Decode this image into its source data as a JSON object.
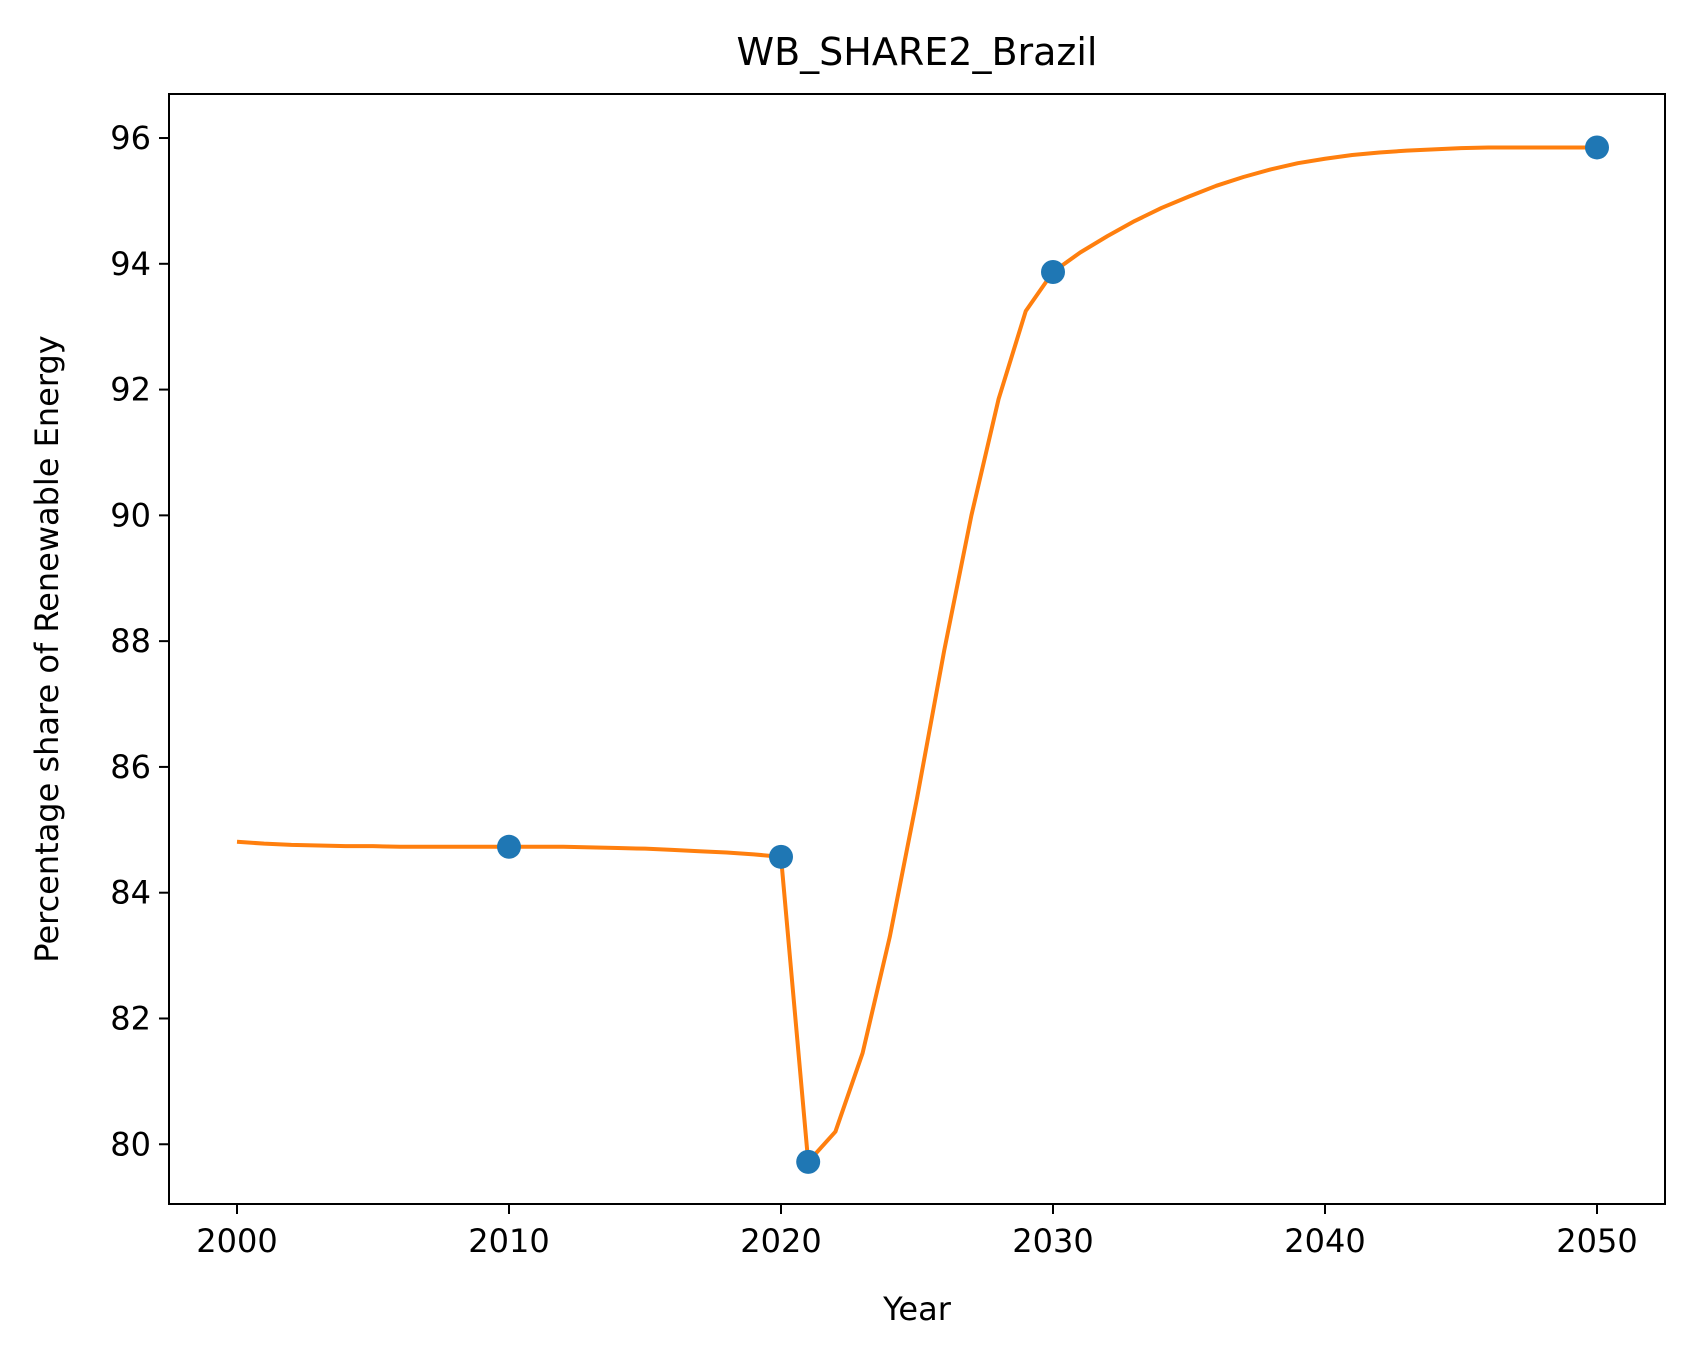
{
  "chart_data": {
    "type": "line",
    "title": "WB_SHARE2_Brazil",
    "xlabel": "Year",
    "ylabel": "Percentage share of Renewable Energy",
    "xlim": [
      1997.5,
      2052.5
    ],
    "ylim": [
      79.05,
      96.7
    ],
    "x_ticks": [
      2000,
      2010,
      2020,
      2030,
      2040,
      2050
    ],
    "y_ticks": [
      80,
      82,
      84,
      86,
      88,
      90,
      92,
      94,
      96
    ],
    "grid": false,
    "legend": "none",
    "series": [
      {
        "kind": "scatter",
        "color": "#1f77b4",
        "x": [
          2010,
          2020,
          2021,
          2030,
          2050
        ],
        "y": [
          84.73,
          84.57,
          79.72,
          93.87,
          95.85
        ]
      },
      {
        "kind": "line",
        "color": "#ff7f0e",
        "x": [
          2000,
          2001,
          2002,
          2003,
          2004,
          2005,
          2006,
          2007,
          2008,
          2009,
          2010,
          2011,
          2012,
          2013,
          2014,
          2015,
          2016,
          2017,
          2018,
          2019,
          2020,
          2021,
          2022,
          2023,
          2024,
          2025,
          2026,
          2027,
          2028,
          2029,
          2030,
          2031,
          2032,
          2033,
          2034,
          2035,
          2036,
          2037,
          2038,
          2039,
          2040,
          2041,
          2042,
          2043,
          2044,
          2045,
          2046,
          2047,
          2048,
          2049,
          2050
        ],
        "y": [
          84.81,
          84.78,
          84.76,
          84.75,
          84.74,
          84.74,
          84.73,
          84.73,
          84.73,
          84.73,
          84.73,
          84.73,
          84.73,
          84.72,
          84.71,
          84.7,
          84.68,
          84.66,
          84.64,
          84.61,
          84.57,
          79.72,
          80.2,
          81.45,
          83.3,
          85.5,
          87.85,
          90.0,
          91.85,
          93.25,
          93.87,
          94.18,
          94.44,
          94.68,
          94.89,
          95.07,
          95.24,
          95.38,
          95.5,
          95.6,
          95.67,
          95.73,
          95.77,
          95.8,
          95.82,
          95.84,
          95.85,
          95.85,
          95.85,
          95.85,
          95.85
        ]
      }
    ]
  }
}
